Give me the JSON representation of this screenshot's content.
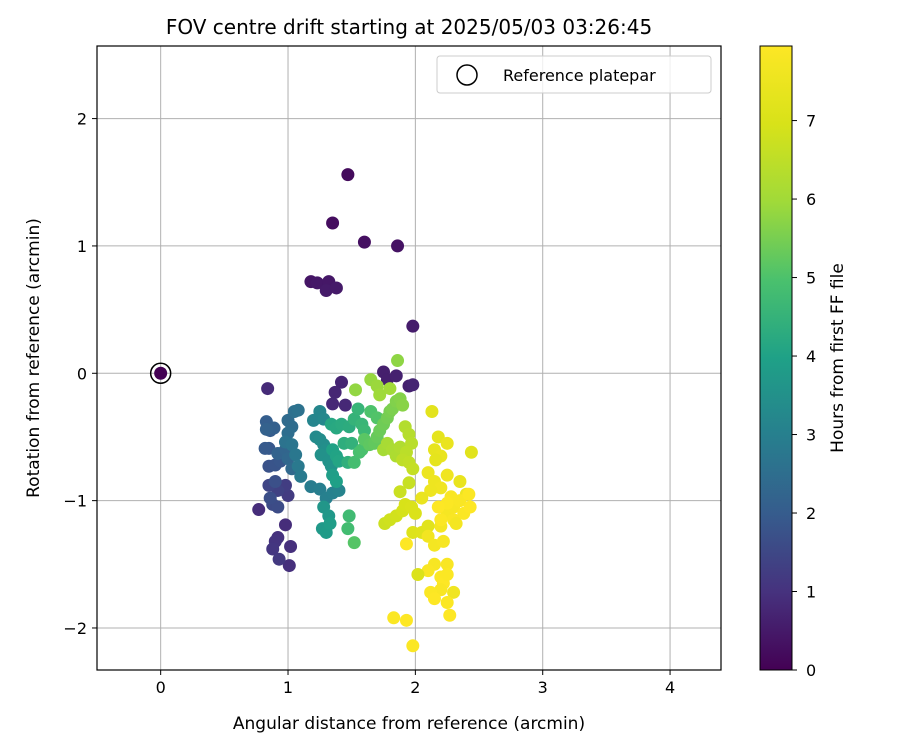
{
  "chart_data": {
    "type": "scatter",
    "title": "FOV centre drift starting at 2025/05/03 03:26:45",
    "xlabel": "Angular distance from reference (arcmin)",
    "ylabel": "Rotation from reference (arcmin)",
    "xlim": [
      -0.5,
      4.4
    ],
    "ylim": [
      -2.33,
      2.57
    ],
    "xticks": [
      0,
      1,
      2,
      3,
      4
    ],
    "yticks": [
      -2,
      -1,
      0,
      1,
      2
    ],
    "grid": true,
    "legend": {
      "placement": "top-right",
      "entries": [
        "Reference platepar"
      ]
    },
    "reference_point": {
      "x": 0,
      "y": 0
    },
    "colorbar": {
      "label": "Hours from first FF file",
      "range": [
        0,
        7.95
      ],
      "ticks": [
        0,
        1,
        2,
        3,
        4,
        5,
        6,
        7
      ],
      "colormap": "viridis"
    },
    "points": [
      {
        "x": 0.0,
        "y": 0.0,
        "h": 0.0
      },
      {
        "x": 1.47,
        "y": 1.56,
        "h": 0.2
      },
      {
        "x": 1.35,
        "y": 1.18,
        "h": 0.25
      },
      {
        "x": 1.6,
        "y": 1.03,
        "h": 0.3
      },
      {
        "x": 1.86,
        "y": 1.0,
        "h": 0.35
      },
      {
        "x": 1.18,
        "y": 0.72,
        "h": 0.4
      },
      {
        "x": 1.23,
        "y": 0.71,
        "h": 0.45
      },
      {
        "x": 1.32,
        "y": 0.72,
        "h": 0.45
      },
      {
        "x": 1.3,
        "y": 0.65,
        "h": 0.5
      },
      {
        "x": 1.38,
        "y": 0.67,
        "h": 0.5
      },
      {
        "x": 1.98,
        "y": 0.37,
        "h": 0.55
      },
      {
        "x": 1.75,
        "y": 0.01,
        "h": 0.6
      },
      {
        "x": 1.78,
        "y": -0.05,
        "h": 0.6
      },
      {
        "x": 1.85,
        "y": -0.02,
        "h": 0.65
      },
      {
        "x": 1.95,
        "y": -0.1,
        "h": 0.65
      },
      {
        "x": 1.98,
        "y": -0.09,
        "h": 0.7
      },
      {
        "x": 1.42,
        "y": -0.07,
        "h": 0.7
      },
      {
        "x": 1.37,
        "y": -0.15,
        "h": 0.75
      },
      {
        "x": 1.35,
        "y": -0.24,
        "h": 0.8
      },
      {
        "x": 1.45,
        "y": -0.25,
        "h": 0.8
      },
      {
        "x": 0.84,
        "y": -0.12,
        "h": 0.85
      },
      {
        "x": 0.77,
        "y": -1.07,
        "h": 0.9
      },
      {
        "x": 0.98,
        "y": -1.19,
        "h": 0.9
      },
      {
        "x": 1.02,
        "y": -1.36,
        "h": 0.95
      },
      {
        "x": 1.01,
        "y": -1.51,
        "h": 0.95
      },
      {
        "x": 0.92,
        "y": -1.29,
        "h": 1.0
      },
      {
        "x": 0.9,
        "y": -1.32,
        "h": 1.05
      },
      {
        "x": 0.88,
        "y": -1.38,
        "h": 1.1
      },
      {
        "x": 0.93,
        "y": -1.46,
        "h": 1.15
      },
      {
        "x": 1.0,
        "y": -0.96,
        "h": 1.2
      },
      {
        "x": 0.98,
        "y": -0.88,
        "h": 1.25
      },
      {
        "x": 0.92,
        "y": -0.92,
        "h": 1.35
      },
      {
        "x": 0.85,
        "y": -0.88,
        "h": 1.45
      },
      {
        "x": 0.88,
        "y": -1.03,
        "h": 1.55
      },
      {
        "x": 0.92,
        "y": -1.05,
        "h": 1.6
      },
      {
        "x": 0.86,
        "y": -0.98,
        "h": 1.65
      },
      {
        "x": 0.9,
        "y": -0.85,
        "h": 1.7
      },
      {
        "x": 0.85,
        "y": -0.73,
        "h": 1.75
      },
      {
        "x": 0.9,
        "y": -0.72,
        "h": 1.8
      },
      {
        "x": 0.94,
        "y": -0.69,
        "h": 1.85
      },
      {
        "x": 0.85,
        "y": -0.59,
        "h": 1.9
      },
      {
        "x": 0.82,
        "y": -0.59,
        "h": 1.95
      },
      {
        "x": 0.86,
        "y": -0.45,
        "h": 2.0
      },
      {
        "x": 0.83,
        "y": -0.38,
        "h": 2.05
      },
      {
        "x": 0.89,
        "y": -0.43,
        "h": 2.1
      },
      {
        "x": 0.83,
        "y": -0.44,
        "h": 2.15
      },
      {
        "x": 0.92,
        "y": -0.63,
        "h": 2.2
      },
      {
        "x": 0.98,
        "y": -0.6,
        "h": 2.25
      },
      {
        "x": 1.0,
        "y": -0.67,
        "h": 2.3
      },
      {
        "x": 1.03,
        "y": -0.75,
        "h": 2.35
      },
      {
        "x": 1.0,
        "y": -0.37,
        "h": 2.4
      },
      {
        "x": 1.03,
        "y": -0.42,
        "h": 2.45
      },
      {
        "x": 1.0,
        "y": -0.47,
        "h": 2.5
      },
      {
        "x": 1.05,
        "y": -0.3,
        "h": 2.55
      },
      {
        "x": 1.08,
        "y": -0.29,
        "h": 2.6
      },
      {
        "x": 0.98,
        "y": -0.54,
        "h": 2.65
      },
      {
        "x": 1.03,
        "y": -0.56,
        "h": 2.7
      },
      {
        "x": 1.06,
        "y": -0.64,
        "h": 2.75
      },
      {
        "x": 1.08,
        "y": -0.73,
        "h": 2.8
      },
      {
        "x": 1.1,
        "y": -0.81,
        "h": 2.85
      },
      {
        "x": 1.18,
        "y": -0.89,
        "h": 2.9
      },
      {
        "x": 1.25,
        "y": -0.91,
        "h": 2.95
      },
      {
        "x": 1.3,
        "y": -0.98,
        "h": 3.0
      },
      {
        "x": 1.35,
        "y": -0.94,
        "h": 3.05
      },
      {
        "x": 1.4,
        "y": -0.92,
        "h": 3.1
      },
      {
        "x": 1.2,
        "y": -0.37,
        "h": 3.15
      },
      {
        "x": 1.25,
        "y": -0.3,
        "h": 3.2
      },
      {
        "x": 1.28,
        "y": -0.36,
        "h": 3.25
      },
      {
        "x": 1.22,
        "y": -0.5,
        "h": 3.3
      },
      {
        "x": 1.25,
        "y": -0.52,
        "h": 3.35
      },
      {
        "x": 1.28,
        "y": -0.56,
        "h": 3.4
      },
      {
        "x": 1.3,
        "y": -0.6,
        "h": 3.45
      },
      {
        "x": 1.26,
        "y": -0.64,
        "h": 3.5
      },
      {
        "x": 1.32,
        "y": -0.69,
        "h": 3.55
      },
      {
        "x": 1.34,
        "y": -0.73,
        "h": 3.6
      },
      {
        "x": 1.28,
        "y": -1.05,
        "h": 3.65
      },
      {
        "x": 1.32,
        "y": -1.12,
        "h": 3.7
      },
      {
        "x": 1.27,
        "y": -1.22,
        "h": 3.75
      },
      {
        "x": 1.3,
        "y": -1.25,
        "h": 3.8
      },
      {
        "x": 1.33,
        "y": -1.18,
        "h": 3.85
      },
      {
        "x": 1.35,
        "y": -0.8,
        "h": 3.9
      },
      {
        "x": 1.38,
        "y": -0.85,
        "h": 3.95
      },
      {
        "x": 1.35,
        "y": -0.6,
        "h": 4.0
      },
      {
        "x": 1.38,
        "y": -0.65,
        "h": 4.05
      },
      {
        "x": 1.4,
        "y": -0.69,
        "h": 4.1
      },
      {
        "x": 1.34,
        "y": -0.4,
        "h": 4.15
      },
      {
        "x": 1.38,
        "y": -0.43,
        "h": 4.2
      },
      {
        "x": 1.42,
        "y": -0.4,
        "h": 4.25
      },
      {
        "x": 1.48,
        "y": -0.42,
        "h": 4.3
      },
      {
        "x": 1.44,
        "y": -0.55,
        "h": 4.35
      },
      {
        "x": 1.47,
        "y": -0.7,
        "h": 4.4
      },
      {
        "x": 1.5,
        "y": -0.55,
        "h": 4.45
      },
      {
        "x": 1.52,
        "y": -0.36,
        "h": 4.5
      },
      {
        "x": 1.55,
        "y": -0.28,
        "h": 4.55
      },
      {
        "x": 1.58,
        "y": -0.4,
        "h": 4.6
      },
      {
        "x": 1.6,
        "y": -0.45,
        "h": 4.65
      },
      {
        "x": 1.62,
        "y": -0.55,
        "h": 4.7
      },
      {
        "x": 1.48,
        "y": -1.12,
        "h": 4.75
      },
      {
        "x": 1.47,
        "y": -1.22,
        "h": 4.8
      },
      {
        "x": 1.52,
        "y": -0.7,
        "h": 4.85
      },
      {
        "x": 1.56,
        "y": -0.62,
        "h": 4.9
      },
      {
        "x": 1.58,
        "y": -0.6,
        "h": 4.95
      },
      {
        "x": 1.65,
        "y": -0.3,
        "h": 5.0
      },
      {
        "x": 1.7,
        "y": -0.35,
        "h": 5.05
      },
      {
        "x": 1.52,
        "y": -1.33,
        "h": 5.1
      },
      {
        "x": 1.6,
        "y": -0.52,
        "h": 5.15
      },
      {
        "x": 1.64,
        "y": -0.56,
        "h": 5.2
      },
      {
        "x": 1.68,
        "y": -0.55,
        "h": 5.25
      },
      {
        "x": 1.7,
        "y": -0.5,
        "h": 5.3
      },
      {
        "x": 1.72,
        "y": -0.45,
        "h": 5.35
      },
      {
        "x": 1.75,
        "y": -0.4,
        "h": 5.4
      },
      {
        "x": 1.78,
        "y": -0.35,
        "h": 5.45
      },
      {
        "x": 1.8,
        "y": -0.3,
        "h": 5.5
      },
      {
        "x": 1.82,
        "y": -0.28,
        "h": 5.55
      },
      {
        "x": 1.85,
        "y": -0.22,
        "h": 5.6
      },
      {
        "x": 1.88,
        "y": -0.2,
        "h": 5.65
      },
      {
        "x": 1.9,
        "y": -0.25,
        "h": 5.7
      },
      {
        "x": 1.86,
        "y": 0.1,
        "h": 5.75
      },
      {
        "x": 1.53,
        "y": -0.13,
        "h": 5.8
      },
      {
        "x": 1.65,
        "y": -0.05,
        "h": 5.85
      },
      {
        "x": 1.7,
        "y": -0.1,
        "h": 5.9
      },
      {
        "x": 1.72,
        "y": -0.17,
        "h": 5.95
      },
      {
        "x": 1.8,
        "y": -0.12,
        "h": 6.0
      },
      {
        "x": 1.75,
        "y": -0.6,
        "h": 6.05
      },
      {
        "x": 1.78,
        "y": -0.55,
        "h": 6.1
      },
      {
        "x": 1.82,
        "y": -0.6,
        "h": 6.15
      },
      {
        "x": 1.85,
        "y": -0.65,
        "h": 6.2
      },
      {
        "x": 1.88,
        "y": -0.58,
        "h": 6.25
      },
      {
        "x": 1.92,
        "y": -0.42,
        "h": 6.3
      },
      {
        "x": 1.95,
        "y": -0.48,
        "h": 6.35
      },
      {
        "x": 1.97,
        "y": -0.55,
        "h": 6.4
      },
      {
        "x": 1.93,
        "y": -0.62,
        "h": 6.45
      },
      {
        "x": 1.9,
        "y": -0.68,
        "h": 6.5
      },
      {
        "x": 1.95,
        "y": -0.7,
        "h": 6.55
      },
      {
        "x": 1.98,
        "y": -0.75,
        "h": 6.6
      },
      {
        "x": 1.95,
        "y": -0.86,
        "h": 6.65
      },
      {
        "x": 1.88,
        "y": -0.93,
        "h": 6.7
      },
      {
        "x": 1.76,
        "y": -1.18,
        "h": 6.75
      },
      {
        "x": 1.8,
        "y": -1.15,
        "h": 6.8
      },
      {
        "x": 1.85,
        "y": -1.12,
        "h": 6.85
      },
      {
        "x": 1.9,
        "y": -1.08,
        "h": 6.9
      },
      {
        "x": 1.92,
        "y": -1.03,
        "h": 6.95
      },
      {
        "x": 1.97,
        "y": -1.05,
        "h": 7.0
      },
      {
        "x": 2.0,
        "y": -1.1,
        "h": 7.05
      },
      {
        "x": 1.98,
        "y": -1.25,
        "h": 7.1
      },
      {
        "x": 2.05,
        "y": -1.25,
        "h": 7.15
      },
      {
        "x": 2.1,
        "y": -1.2,
        "h": 7.2
      },
      {
        "x": 2.13,
        "y": -0.3,
        "h": 7.25
      },
      {
        "x": 2.18,
        "y": -0.5,
        "h": 7.3
      },
      {
        "x": 2.15,
        "y": -0.6,
        "h": 7.35
      },
      {
        "x": 2.2,
        "y": -0.65,
        "h": 7.4
      },
      {
        "x": 2.25,
        "y": -0.55,
        "h": 7.45
      },
      {
        "x": 2.1,
        "y": -0.78,
        "h": 7.5
      },
      {
        "x": 2.15,
        "y": -0.85,
        "h": 7.55
      },
      {
        "x": 2.2,
        "y": -0.9,
        "h": 7.6
      },
      {
        "x": 2.1,
        "y": -1.28,
        "h": 7.65
      },
      {
        "x": 2.15,
        "y": -1.35,
        "h": 7.7
      },
      {
        "x": 2.22,
        "y": -1.32,
        "h": 7.75
      },
      {
        "x": 2.15,
        "y": -1.5,
        "h": 7.8
      },
      {
        "x": 2.1,
        "y": -1.55,
        "h": 7.85
      },
      {
        "x": 2.02,
        "y": -1.58,
        "h": 7.05
      },
      {
        "x": 2.44,
        "y": -0.62,
        "h": 7.2
      },
      {
        "x": 2.35,
        "y": -0.85,
        "h": 7.4
      },
      {
        "x": 2.4,
        "y": -0.95,
        "h": 7.5
      },
      {
        "x": 2.3,
        "y": -1.72,
        "h": 7.6
      },
      {
        "x": 2.2,
        "y": -1.2,
        "h": 7.7
      },
      {
        "x": 2.25,
        "y": -1.1,
        "h": 7.75
      },
      {
        "x": 2.3,
        "y": -1.05,
        "h": 7.8
      },
      {
        "x": 2.35,
        "y": -1.0,
        "h": 7.85
      },
      {
        "x": 2.38,
        "y": -1.1,
        "h": 7.9
      },
      {
        "x": 2.43,
        "y": -1.05,
        "h": 7.95
      },
      {
        "x": 2.42,
        "y": -0.95,
        "h": 7.9
      },
      {
        "x": 2.28,
        "y": -0.97,
        "h": 7.85
      },
      {
        "x": 2.25,
        "y": -1.02,
        "h": 7.9
      },
      {
        "x": 2.3,
        "y": -1.15,
        "h": 7.85
      },
      {
        "x": 2.2,
        "y": -1.15,
        "h": 7.9
      },
      {
        "x": 2.18,
        "y": -1.05,
        "h": 7.95
      },
      {
        "x": 2.25,
        "y": -1.5,
        "h": 7.85
      },
      {
        "x": 2.2,
        "y": -1.6,
        "h": 7.9
      },
      {
        "x": 2.22,
        "y": -1.65,
        "h": 7.95
      },
      {
        "x": 2.25,
        "y": -1.58,
        "h": 7.9
      },
      {
        "x": 2.2,
        "y": -1.7,
        "h": 7.85
      },
      {
        "x": 2.12,
        "y": -1.72,
        "h": 7.9
      },
      {
        "x": 2.15,
        "y": -1.77,
        "h": 7.95
      },
      {
        "x": 2.25,
        "y": -1.8,
        "h": 7.9
      },
      {
        "x": 2.27,
        "y": -1.9,
        "h": 7.95
      },
      {
        "x": 1.83,
        "y": -1.92,
        "h": 7.9
      },
      {
        "x": 1.93,
        "y": -1.94,
        "h": 7.95
      },
      {
        "x": 1.98,
        "y": -2.14,
        "h": 7.9
      },
      {
        "x": 1.93,
        "y": -1.34,
        "h": 7.95
      },
      {
        "x": 2.25,
        "y": -0.8,
        "h": 7.6
      },
      {
        "x": 2.32,
        "y": -1.18,
        "h": 7.7
      },
      {
        "x": 2.16,
        "y": -0.68,
        "h": 7.3
      },
      {
        "x": 2.12,
        "y": -0.92,
        "h": 7.55
      },
      {
        "x": 2.05,
        "y": -0.98,
        "h": 7.45
      }
    ]
  }
}
